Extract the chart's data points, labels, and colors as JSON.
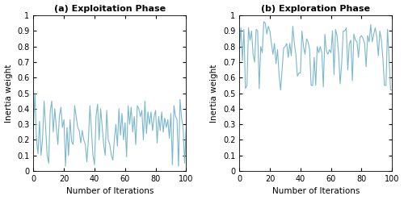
{
  "title_a": "(a) Exploitation Phase",
  "title_b": "(b) Exploration Phase",
  "xlabel": "Number of Iterations",
  "ylabel": "Inertia weight",
  "xlim": [
    0,
    100
  ],
  "ylim": [
    0,
    1
  ],
  "yticks": [
    0,
    0.1,
    0.2,
    0.3,
    0.4,
    0.5,
    0.6,
    0.7,
    0.8,
    0.9,
    1.0
  ],
  "xticks": [
    0,
    20,
    40,
    60,
    80,
    100
  ],
  "line_color": "#7ab8cc",
  "line_width": 0.8,
  "figsize": [
    5.0,
    2.48
  ],
  "dpi": 100,
  "exploit_x": [
    0,
    1,
    2,
    3,
    4,
    5,
    6,
    7,
    8,
    9,
    10,
    11,
    12,
    13,
    14,
    15,
    16,
    17,
    18,
    19,
    20,
    21,
    22,
    23,
    24,
    25,
    26,
    27,
    28,
    29,
    30,
    31,
    32,
    33,
    34,
    35,
    36,
    37,
    38,
    39,
    40,
    41,
    42,
    43,
    44,
    45,
    46,
    47,
    48,
    49,
    50,
    51,
    52,
    53,
    54,
    55,
    56,
    57,
    58,
    59,
    60,
    61,
    62,
    63,
    64,
    65,
    66,
    67,
    68,
    69,
    70,
    71,
    72,
    73,
    74,
    75,
    76,
    77,
    78,
    79,
    80,
    81,
    82,
    83,
    84,
    85,
    86,
    87,
    88,
    89,
    90,
    91,
    92,
    93,
    94,
    95,
    96,
    97,
    98,
    99,
    100
  ],
  "exploit_y": [
    0.28,
    0.5,
    0.2,
    0.11,
    0.32,
    0.1,
    0.21,
    0.45,
    0.28,
    0.1,
    0.05,
    0.38,
    0.45,
    0.25,
    0.4,
    0.28,
    0.17,
    0.35,
    0.41,
    0.28,
    0.33,
    0.03,
    0.28,
    0.1,
    0.33,
    0.19,
    0.17,
    0.42,
    0.35,
    0.28,
    0.26,
    0.18,
    0.26,
    0.2,
    0.17,
    0.06,
    0.2,
    0.42,
    0.26,
    0.1,
    0.04,
    0.35,
    0.43,
    0.2,
    0.4,
    0.29,
    0.17,
    0.1,
    0.39,
    0.2,
    0.17,
    0.1,
    0.07,
    0.2,
    0.3,
    0.16,
    0.4,
    0.23,
    0.37,
    0.2,
    0.31,
    0.09,
    0.42,
    0.3,
    0.41,
    0.25,
    0.35,
    0.17,
    0.42,
    0.4,
    0.35,
    0.39,
    0.2,
    0.45,
    0.24,
    0.38,
    0.3,
    0.38,
    0.26,
    0.35,
    0.39,
    0.18,
    0.35,
    0.26,
    0.38,
    0.25,
    0.34,
    0.28,
    0.33,
    0.21,
    0.37,
    0.04,
    0.42,
    0.35,
    0.33,
    0.03,
    0.46,
    0.34,
    0.28,
    0.05,
    0.28
  ],
  "explore_x": [
    0,
    1,
    2,
    3,
    4,
    5,
    6,
    7,
    8,
    9,
    10,
    11,
    12,
    13,
    14,
    15,
    16,
    17,
    18,
    19,
    20,
    21,
    22,
    23,
    24,
    25,
    26,
    27,
    28,
    29,
    30,
    31,
    32,
    33,
    34,
    35,
    36,
    37,
    38,
    39,
    40,
    41,
    42,
    43,
    44,
    45,
    46,
    47,
    48,
    49,
    50,
    51,
    52,
    53,
    54,
    55,
    56,
    57,
    58,
    59,
    60,
    61,
    62,
    63,
    64,
    65,
    66,
    67,
    68,
    69,
    70,
    71,
    72,
    73,
    74,
    75,
    76,
    77,
    78,
    79,
    80,
    81,
    82,
    83,
    84,
    85,
    86,
    87,
    88,
    89,
    90,
    91,
    92,
    93,
    94,
    95,
    96,
    97,
    98,
    99,
    100
  ],
  "explore_y": [
    0.78,
    0.92,
    0.71,
    0.91,
    0.53,
    0.55,
    0.92,
    0.84,
    0.9,
    0.75,
    0.7,
    0.91,
    0.9,
    0.53,
    0.8,
    0.76,
    0.96,
    0.95,
    0.88,
    0.93,
    0.9,
    0.82,
    0.75,
    0.82,
    0.69,
    0.78,
    0.62,
    0.52,
    0.65,
    0.79,
    0.8,
    0.82,
    0.73,
    0.82,
    0.74,
    0.93,
    0.82,
    0.75,
    0.61,
    0.63,
    0.63,
    0.9,
    0.8,
    0.75,
    0.85,
    0.83,
    0.78,
    0.55,
    0.55,
    0.73,
    0.55,
    0.8,
    0.76,
    0.8,
    0.76,
    0.54,
    0.88,
    0.77,
    0.75,
    0.78,
    0.76,
    0.9,
    0.62,
    0.91,
    0.87,
    0.75,
    0.56,
    0.69,
    0.9,
    0.9,
    0.92,
    0.65,
    0.82,
    0.84,
    0.58,
    0.88,
    0.84,
    0.83,
    0.73,
    0.86,
    0.87,
    0.85,
    0.82,
    0.67,
    0.87,
    0.83,
    0.94,
    0.83,
    0.88,
    0.92,
    0.86,
    0.74,
    0.9,
    0.84,
    0.72,
    0.55,
    0.55,
    0.91,
    0.73,
    0.52,
    0.52
  ]
}
